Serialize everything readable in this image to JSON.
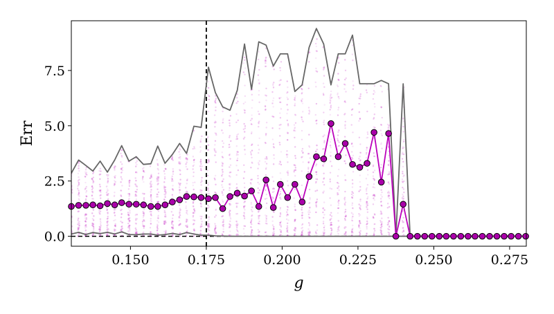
{
  "chart_data": {
    "type": "line",
    "xlabel": "g",
    "ylabel": "Err",
    "xlim": [
      0.1305,
      0.2805
    ],
    "ylim": [
      -0.45,
      9.75
    ],
    "xticks": [
      0.15,
      0.175,
      0.2,
      0.225,
      0.25,
      0.275
    ],
    "xtick_labels": [
      "0.150",
      "0.175",
      "0.200",
      "0.225",
      "0.250",
      "0.275"
    ],
    "yticks": [
      0.0,
      2.5,
      5.0,
      7.5
    ],
    "ytick_labels": [
      "0.0",
      "2.5",
      "5.0",
      "7.5"
    ],
    "grid": false,
    "legend": "none",
    "vertical_reference_line": {
      "x": 0.175,
      "style": "dashed",
      "color": "#000000"
    },
    "horizontal_reference_line": {
      "y": 0.0,
      "style": "dashed",
      "color": "#000000"
    },
    "series": [
      {
        "style": "line",
        "color": "#666666",
        "x": [
          0.1305,
          0.1329,
          0.1353,
          0.1376,
          0.14,
          0.1424,
          0.1448,
          0.1471,
          0.1495,
          0.1519,
          0.1543,
          0.1567,
          0.159,
          0.1614,
          0.1638,
          0.1662,
          0.1685,
          0.1709,
          0.1733,
          0.1757,
          0.178,
          0.1804,
          0.1828,
          0.1852,
          0.1876,
          0.1899,
          0.1923,
          0.1947,
          0.1971,
          0.1994,
          0.2018,
          0.2042,
          0.2066,
          0.2089,
          0.2113,
          0.2137,
          0.2161,
          0.2185,
          0.2208,
          0.2232,
          0.2256,
          0.228,
          0.2303,
          0.2327,
          0.2351,
          0.2375,
          0.2399,
          0.2422,
          0.2446,
          0.247,
          0.2494,
          0.2518,
          0.2541,
          0.2565,
          0.2589,
          0.2613,
          0.2636,
          0.266,
          0.2684,
          0.2708,
          0.2732,
          0.2755,
          0.2779,
          0.2803
        ],
        "values": [
          2.85,
          3.45,
          3.2,
          2.95,
          3.4,
          2.9,
          3.45,
          4.1,
          3.4,
          3.6,
          3.25,
          3.28,
          4.08,
          3.3,
          3.7,
          4.2,
          3.75,
          4.98,
          4.93,
          7.65,
          6.5,
          5.85,
          5.7,
          6.6,
          8.7,
          6.65,
          8.8,
          8.65,
          7.7,
          8.25,
          8.25,
          6.55,
          6.85,
          8.55,
          9.4,
          8.7,
          6.85,
          8.25,
          8.25,
          9.1,
          6.9,
          6.9,
          6.9,
          7.05,
          6.9,
          0.0,
          6.9,
          0.0,
          0.0,
          0.0,
          0.0,
          0.0,
          0.0,
          0.0,
          0.0,
          0.0,
          0.0,
          0.0,
          0.0,
          0.0,
          0.0,
          0.0,
          0.0,
          0.0
        ]
      },
      {
        "style": "line",
        "color": "#666666",
        "x": [
          0.1305,
          0.1329,
          0.1353,
          0.1376,
          0.14,
          0.1424,
          0.1448,
          0.1471,
          0.1495,
          0.1519,
          0.1543,
          0.1567,
          0.159,
          0.1614,
          0.1638,
          0.1662,
          0.1685,
          0.1709,
          0.1733,
          0.1757,
          0.178,
          0.1804,
          0.1828,
          0.2803
        ],
        "values": [
          0.1,
          0.18,
          0.08,
          0.17,
          0.12,
          0.18,
          0.1,
          0.2,
          0.08,
          0.07,
          0.1,
          0.1,
          0.05,
          0.08,
          0.13,
          0.08,
          0.17,
          0.1,
          0.05,
          0.05,
          0.02,
          0.01,
          0.0,
          0.0
        ]
      },
      {
        "style": "line-markers",
        "color": "#bb00bb",
        "marker_fill": "#aa00aa",
        "marker_edge": "#000000",
        "x": [
          0.1305,
          0.1329,
          0.1353,
          0.1376,
          0.14,
          0.1424,
          0.1448,
          0.1471,
          0.1495,
          0.1519,
          0.1543,
          0.1567,
          0.159,
          0.1614,
          0.1638,
          0.1662,
          0.1685,
          0.1709,
          0.1733,
          0.1757,
          0.178,
          0.1804,
          0.1828,
          0.1852,
          0.1876,
          0.1899,
          0.1923,
          0.1947,
          0.1971,
          0.1994,
          0.2018,
          0.2042,
          0.2066,
          0.2089,
          0.2113,
          0.2137,
          0.2161,
          0.2185,
          0.2208,
          0.2232,
          0.2256,
          0.228,
          0.2303,
          0.2327,
          0.2351,
          0.2375,
          0.2399,
          0.2422,
          0.2446,
          0.247,
          0.2494,
          0.2518,
          0.2541,
          0.2565,
          0.2589,
          0.2613,
          0.2636,
          0.266,
          0.2684,
          0.2708,
          0.2732,
          0.2755,
          0.2779,
          0.2803
        ],
        "values": [
          1.35,
          1.4,
          1.4,
          1.42,
          1.38,
          1.48,
          1.42,
          1.52,
          1.45,
          1.45,
          1.42,
          1.35,
          1.35,
          1.42,
          1.55,
          1.65,
          1.8,
          1.78,
          1.75,
          1.7,
          1.75,
          1.25,
          1.8,
          1.95,
          1.82,
          2.05,
          1.35,
          2.55,
          1.3,
          2.35,
          1.75,
          2.35,
          1.55,
          2.7,
          3.6,
          3.5,
          5.1,
          3.6,
          4.2,
          3.25,
          3.12,
          3.3,
          4.7,
          2.45,
          4.65,
          0.0,
          1.45,
          0.0,
          0.0,
          0.0,
          0.0,
          0.0,
          0.0,
          0.0,
          0.0,
          0.0,
          0.0,
          0.0,
          0.0,
          0.0,
          0.0,
          0.0,
          0.0,
          0.0
        ]
      }
    ],
    "scatter_cloud": {
      "color": "#cc44cc",
      "description_free": true,
      "column_max": [
        2.85,
        3.45,
        3.2,
        2.95,
        3.4,
        2.9,
        3.45,
        4.1,
        3.4,
        3.6,
        3.25,
        3.28,
        4.08,
        3.3,
        3.7,
        4.2,
        3.75,
        4.98,
        4.93,
        7.65,
        6.5,
        5.85,
        5.7,
        6.6,
        8.7,
        6.65,
        8.8,
        8.65,
        7.7,
        8.25,
        8.25,
        6.55,
        6.85,
        8.55,
        9.4,
        8.7,
        6.85,
        8.25,
        8.25,
        9.1,
        6.9,
        6.9,
        6.9,
        7.05,
        6.9,
        0.0,
        6.9,
        0.0
      ]
    }
  }
}
